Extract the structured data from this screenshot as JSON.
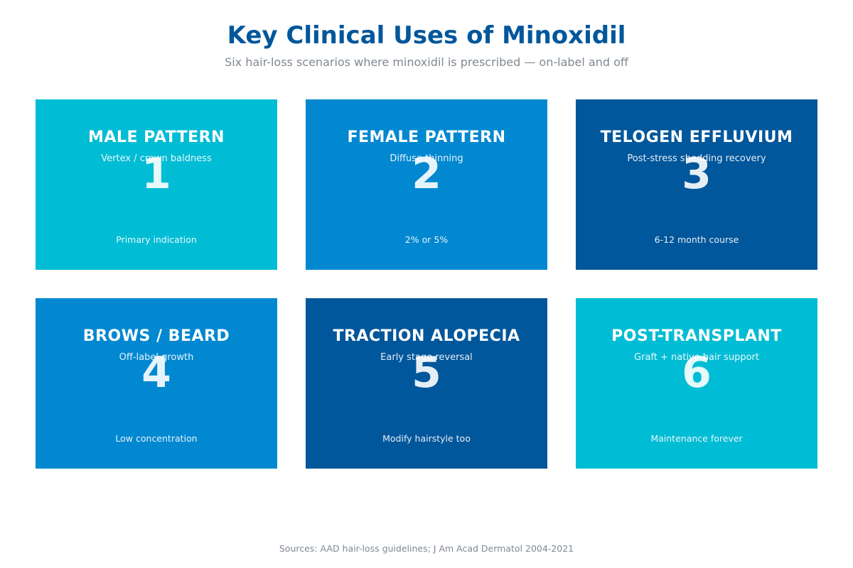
{
  "header": {
    "title": "Key Clinical Uses of Minoxidil",
    "subtitle": "Six hair-loss scenarios where minoxidil is prescribed — on-label and off"
  },
  "cards": [
    {
      "title": "MALE PATTERN",
      "desc": "Vertex / crown baldness",
      "number": "1",
      "note": "Primary indication",
      "color": "#00bcd4"
    },
    {
      "title": "FEMALE PATTERN",
      "desc": "Diffuse thinning",
      "number": "2",
      "note": "2% or 5%",
      "color": "#0288d1"
    },
    {
      "title": "TELOGEN EFFLUVIUM",
      "desc": "Post-stress shedding recovery",
      "number": "3",
      "note": "6-12 month course",
      "color": "#01579b"
    },
    {
      "title": "BROWS / BEARD",
      "desc": "Off-label growth",
      "number": "4",
      "note": "Low concentration",
      "color": "#0288d1"
    },
    {
      "title": "TRACTION ALOPECIA",
      "desc": "Early stage reversal",
      "number": "5",
      "note": "Modify hairstyle too",
      "color": "#01579b"
    },
    {
      "title": "POST-TRANSPLANT",
      "desc": "Graft + native hair support",
      "number": "6",
      "note": "Maintenance forever",
      "color": "#00bcd4"
    }
  ],
  "footer": {
    "source": "Sources: AAD hair-loss guidelines; J Am Acad Dermatol 2004-2021"
  }
}
